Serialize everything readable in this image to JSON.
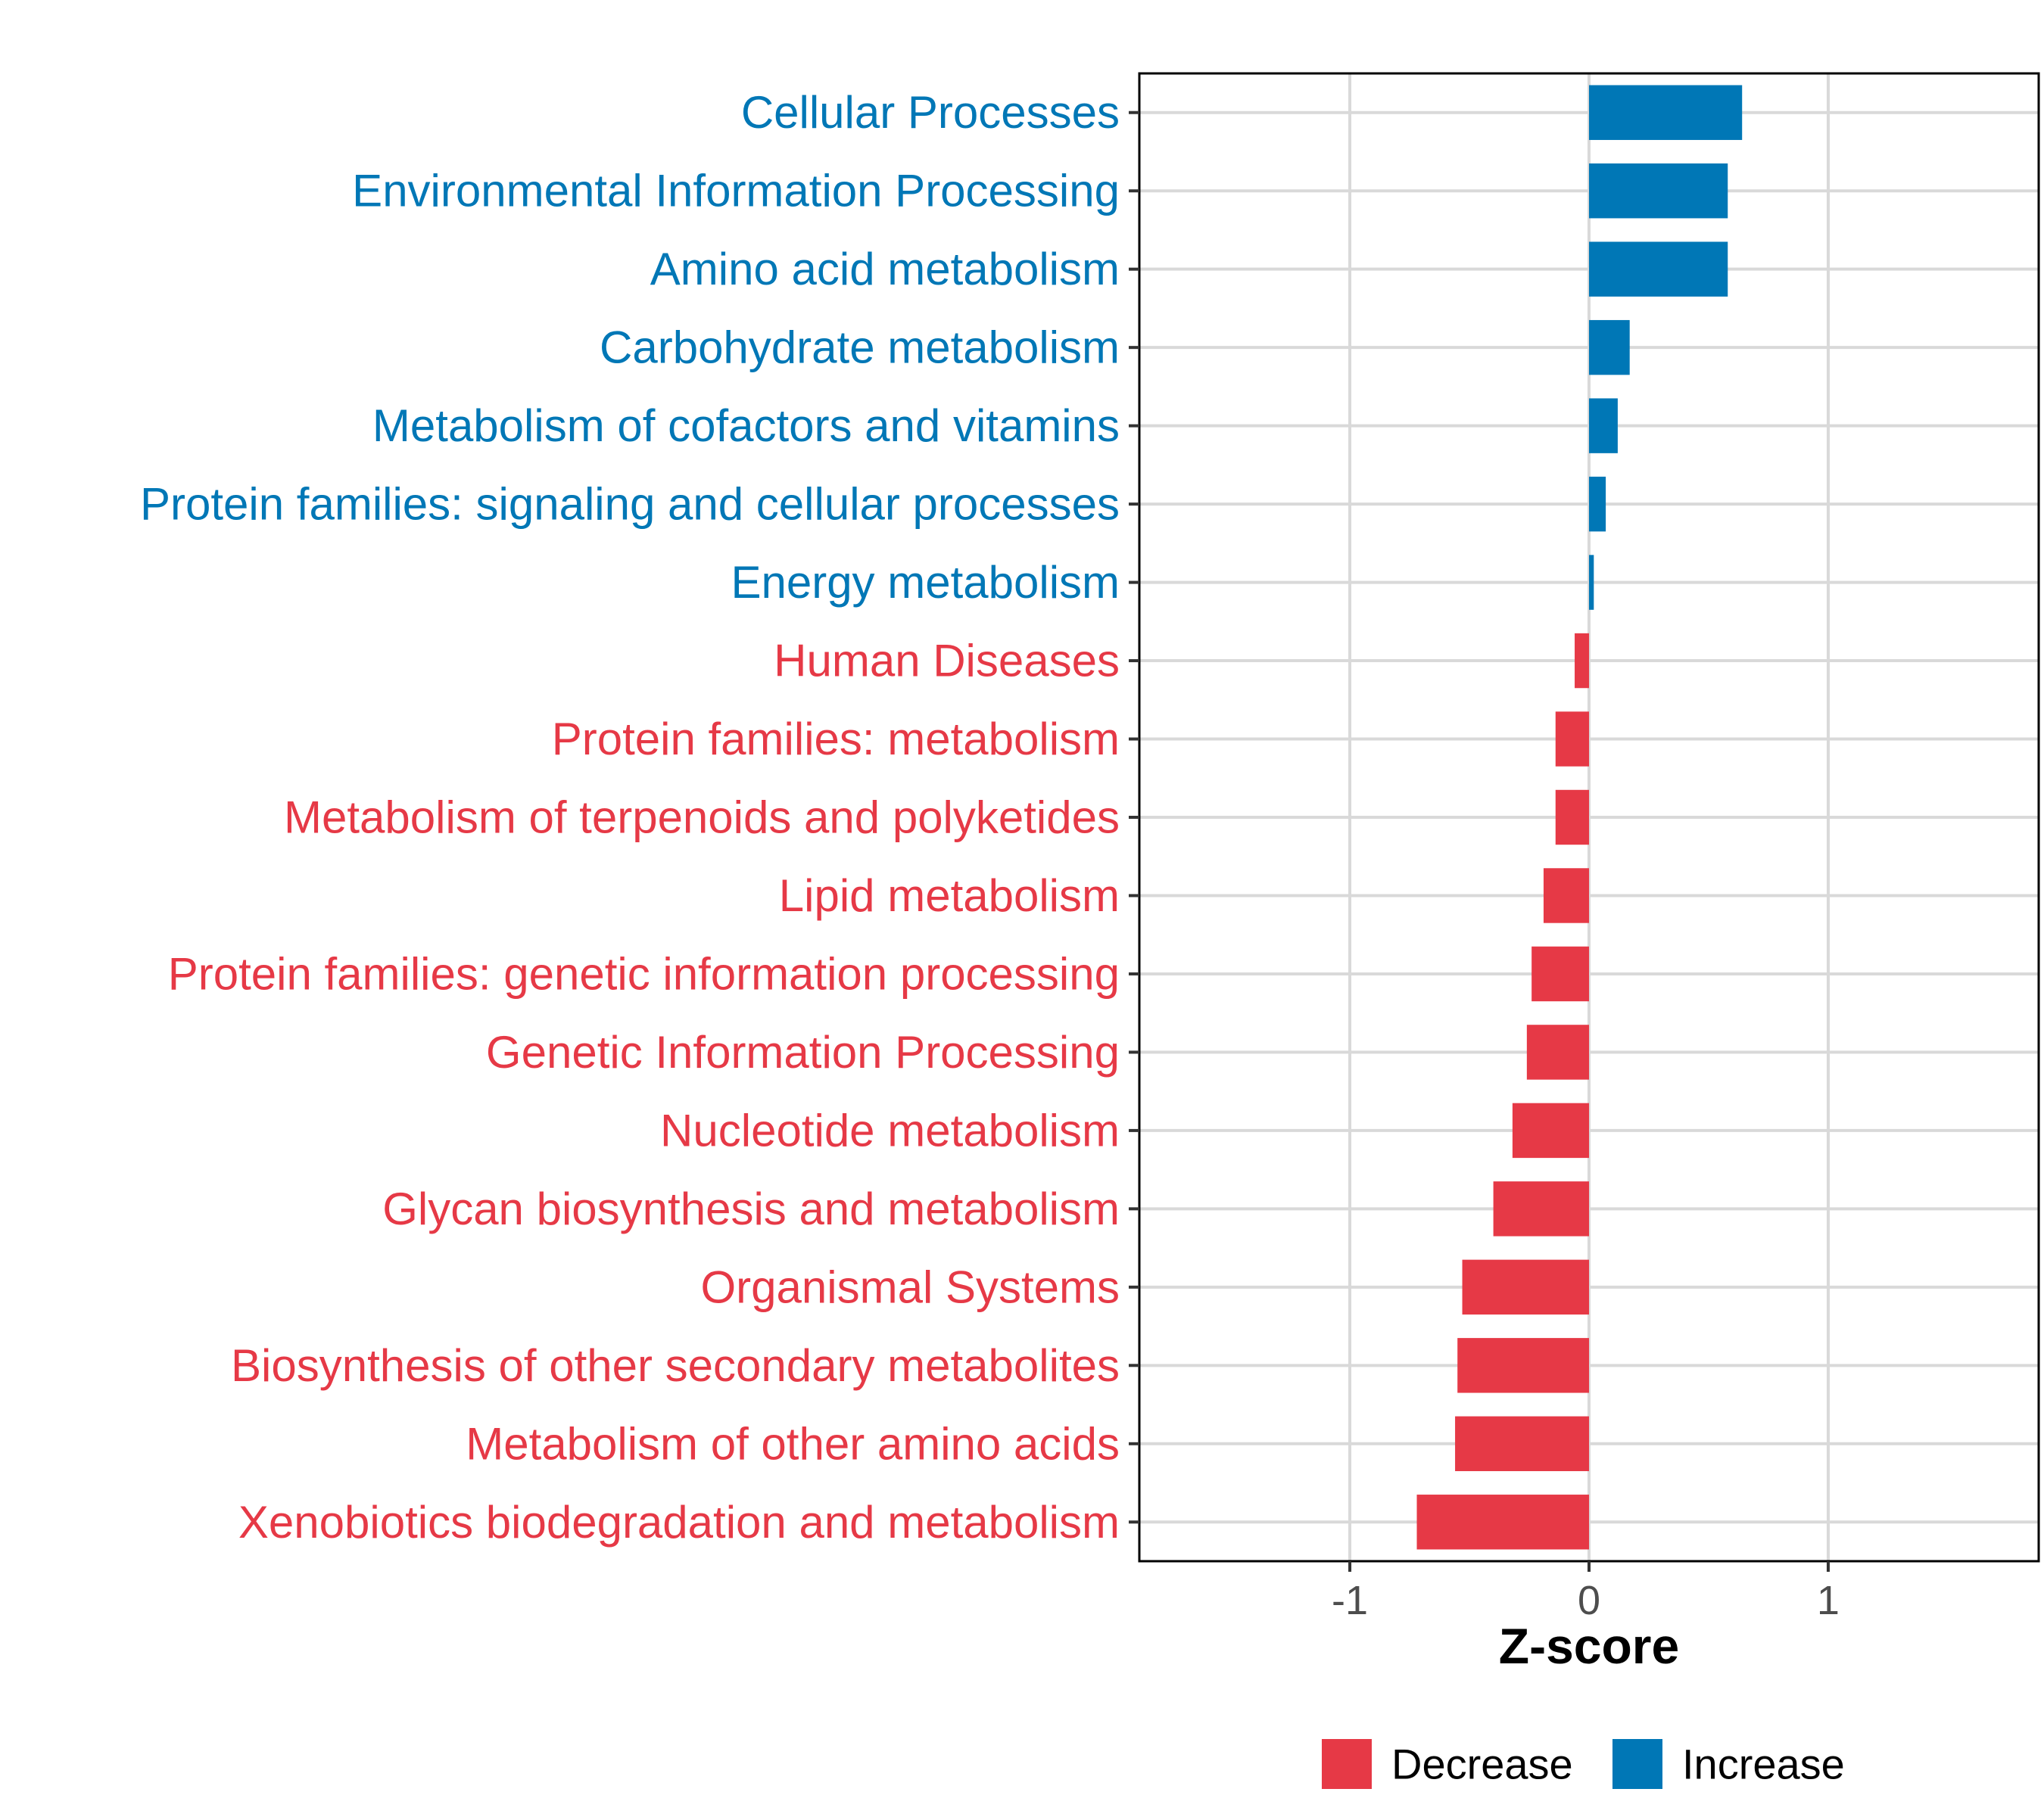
{
  "chart_data": {
    "type": "bar",
    "orientation": "horizontal",
    "categories": [
      "Cellular Processes",
      "Environmental Information Processing",
      "Amino acid metabolism",
      "Carbohydrate metabolism",
      "Metabolism of cofactors and vitamins",
      "Protein families: signaling and cellular processes",
      "Energy metabolism",
      "Human Diseases",
      "Protein families: metabolism",
      "Metabolism of terpenoids and polyketides",
      "Lipid metabolism",
      "Protein families: genetic information processing",
      "Genetic Information Processing",
      "Nucleotide metabolism",
      "Glycan biosynthesis and metabolism",
      "Organismal Systems",
      "Biosynthesis of other secondary metabolites",
      "Metabolism of other amino acids",
      "Xenobiotics biodegradation and metabolism"
    ],
    "values": [
      0.64,
      0.58,
      0.58,
      0.17,
      0.12,
      0.07,
      0.02,
      -0.06,
      -0.14,
      -0.14,
      -0.19,
      -0.24,
      -0.26,
      -0.32,
      -0.4,
      -0.53,
      -0.55,
      -0.56,
      -0.72
    ],
    "groups": [
      "Increase",
      "Increase",
      "Increase",
      "Increase",
      "Increase",
      "Increase",
      "Increase",
      "Decrease",
      "Decrease",
      "Decrease",
      "Decrease",
      "Decrease",
      "Decrease",
      "Decrease",
      "Decrease",
      "Decrease",
      "Decrease",
      "Decrease",
      "Decrease"
    ],
    "xlabel": "Z-score",
    "ylabel": "",
    "xlim": [
      -1.88,
      1.88
    ],
    "xticks": [
      -1,
      0,
      1
    ],
    "xtick_labels": [
      "-1",
      "0",
      "1"
    ],
    "grid": true,
    "legend": {
      "placement": "bottom",
      "entries": [
        {
          "label": "Decrease",
          "color": "#E63946"
        },
        {
          "label": "Increase",
          "color": "#0077B6"
        }
      ]
    },
    "colors": {
      "Decrease": "#E63946",
      "Increase": "#0077B6",
      "grid": "#D9D9D9",
      "axis": "#000000"
    }
  }
}
